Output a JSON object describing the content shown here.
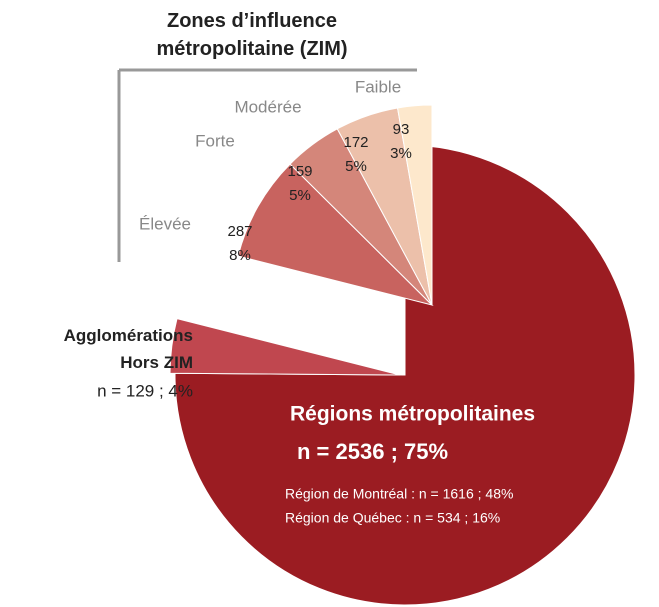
{
  "chart_data": {
    "type": "pie",
    "title": "Zones d’influence métropolitaine (ZIM)",
    "categories": [
      "Régions métropolitaines",
      "Agglomérations Hors ZIM",
      "Élevée",
      "Forte",
      "Modérée",
      "Faible"
    ],
    "values": [
      2536,
      129,
      287,
      159,
      172,
      93
    ],
    "value_labels": [
      "n = 2536 ; 75%",
      "n = 129 ; 4%",
      "287",
      "159",
      "172",
      "93"
    ],
    "percent_labels": [
      "8%",
      "5%",
      "5%",
      "3%"
    ],
    "colors": [
      "#9b1c22",
      "#c0474f",
      "#c8635f",
      "#d4867a",
      "#ecc0aa",
      "#fde8cc"
    ],
    "notes": [
      "Région de Montréal : n = 1616 ; 48%",
      "Région de Québec  : n = 534 ; 16%"
    ]
  }
}
